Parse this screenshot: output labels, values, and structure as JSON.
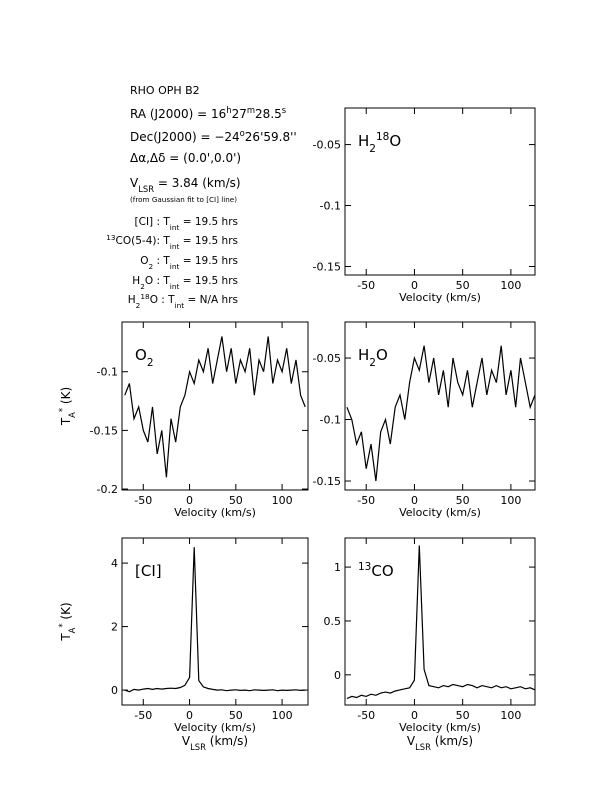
{
  "header": {
    "title": "RHO OPH B2",
    "lines": [
      [
        {
          "t": "RA (J2000) =  16"
        },
        {
          "sup": "h"
        },
        {
          "t": "27"
        },
        {
          "sup": "m"
        },
        {
          "t": "28.5"
        },
        {
          "sup": "s"
        }
      ],
      [
        {
          "t": "Dec(J2000) = −24"
        },
        {
          "sup": "o"
        },
        {
          "t": "26'59.8''"
        }
      ],
      [
        {
          "t": "Δα,Δδ = (0.0',0.0')"
        }
      ],
      [
        {
          "t": "V"
        },
        {
          "sub": "LSR"
        },
        {
          "t": " = 3.84 (km/s)"
        }
      ],
      [
        {
          "small": "(from Gaussian fit to [CI] line)"
        }
      ],
      [
        {
          "t": "[CI] : T"
        },
        {
          "sub": "int"
        },
        {
          "t": " = 19.5 hrs"
        }
      ],
      [
        {
          "sup": "13"
        },
        {
          "t": "CO(5-4): T"
        },
        {
          "sub": "int"
        },
        {
          "t": " = 19.5 hrs"
        }
      ],
      [
        {
          "t": "O"
        },
        {
          "sub": "2"
        },
        {
          "t": " : T"
        },
        {
          "sub": "int"
        },
        {
          "t": " = 19.5 hrs"
        }
      ],
      [
        {
          "t": "H"
        },
        {
          "sub": "2"
        },
        {
          "t": "O : T"
        },
        {
          "sub": "int"
        },
        {
          "t": " = 19.5 hrs"
        }
      ],
      [
        {
          "t": "H"
        },
        {
          "sub": "2"
        },
        {
          "sup": "18"
        },
        {
          "t": "O : T"
        },
        {
          "sub": "int"
        },
        {
          "t": " = N/A hrs"
        }
      ]
    ]
  },
  "chart_data": [
    {
      "type": "line",
      "label": [
        {
          "t": "H"
        },
        {
          "sub": "2"
        },
        {
          "sup": "18"
        },
        {
          "t": "O"
        }
      ],
      "xlim": [
        -72,
        125
      ],
      "ylim": [
        -0.157,
        -0.02
      ],
      "xticks": [
        -50,
        0,
        50,
        100
      ],
      "yticks": [
        -0.05,
        -0.1,
        -0.15
      ],
      "xlabel": "Velocity (km/s)"
    },
    {
      "type": "line",
      "label": [
        {
          "t": "O"
        },
        {
          "sub": "2"
        }
      ],
      "ylabel": [
        {
          "t": "T"
        },
        {
          "sub": "A"
        },
        {
          "sup": "*"
        },
        {
          "t": " (K)"
        }
      ],
      "x": [
        -70,
        -65,
        -60,
        -55,
        -50,
        -45,
        -40,
        -35,
        -30,
        -25,
        -20,
        -15,
        -10,
        -5,
        0,
        5,
        10,
        15,
        20,
        25,
        30,
        35,
        40,
        45,
        50,
        55,
        60,
        65,
        70,
        75,
        80,
        85,
        90,
        95,
        100,
        105,
        110,
        115,
        120,
        125
      ],
      "series": [
        {
          "color": "#000000",
          "values": [
            -0.12,
            -0.11,
            -0.14,
            -0.13,
            -0.15,
            -0.16,
            -0.13,
            -0.17,
            -0.15,
            -0.19,
            -0.14,
            -0.16,
            -0.13,
            -0.12,
            -0.1,
            -0.11,
            -0.09,
            -0.1,
            -0.08,
            -0.11,
            -0.09,
            -0.07,
            -0.1,
            -0.08,
            -0.11,
            -0.09,
            -0.1,
            -0.08,
            -0.12,
            -0.09,
            -0.1,
            -0.07,
            -0.11,
            -0.09,
            -0.1,
            -0.08,
            -0.11,
            -0.09,
            -0.12,
            -0.13
          ]
        }
      ],
      "xlim": [
        -73,
        128
      ],
      "ylim": [
        -0.2008,
        -0.0576
      ],
      "xticks": [
        -50,
        0,
        50,
        100
      ],
      "yticks": [
        -0.1,
        -0.15,
        -0.2
      ],
      "xlabel": "Velocity (km/s)"
    },
    {
      "type": "line",
      "label": [
        {
          "t": "H"
        },
        {
          "sub": "2"
        },
        {
          "t": "O"
        }
      ],
      "x": [
        -70,
        -65,
        -60,
        -55,
        -50,
        -45,
        -40,
        -35,
        -30,
        -25,
        -20,
        -15,
        -10,
        -5,
        0,
        5,
        10,
        15,
        20,
        25,
        30,
        35,
        40,
        45,
        50,
        55,
        60,
        65,
        70,
        75,
        80,
        85,
        90,
        95,
        100,
        105,
        110,
        115,
        120,
        125
      ],
      "series": [
        {
          "color": "#000000",
          "values": [
            -0.09,
            -0.1,
            -0.12,
            -0.11,
            -0.14,
            -0.12,
            -0.15,
            -0.11,
            -0.1,
            -0.12,
            -0.09,
            -0.08,
            -0.1,
            -0.07,
            -0.05,
            -0.06,
            -0.04,
            -0.07,
            -0.05,
            -0.08,
            -0.06,
            -0.09,
            -0.05,
            -0.07,
            -0.08,
            -0.06,
            -0.09,
            -0.07,
            -0.05,
            -0.08,
            -0.06,
            -0.07,
            -0.04,
            -0.08,
            -0.06,
            -0.09,
            -0.05,
            -0.07,
            -0.09,
            -0.08
          ]
        }
      ],
      "xlim": [
        -72,
        125
      ],
      "ylim": [
        -0.1573,
        -0.0207
      ],
      "xticks": [
        -50,
        0,
        50,
        100
      ],
      "yticks": [
        -0.05,
        -0.1,
        -0.15
      ],
      "xlabel": "Velocity (km/s)"
    },
    {
      "type": "line",
      "label": [
        {
          "t": "[CI]"
        }
      ],
      "ylabel": [
        {
          "t": "T"
        },
        {
          "sub": "A"
        },
        {
          "sup": "*"
        },
        {
          "t": " (K)"
        }
      ],
      "x": [
        -70,
        -65,
        -60,
        -55,
        -50,
        -45,
        -40,
        -35,
        -30,
        -25,
        -20,
        -15,
        -10,
        -5,
        0,
        5,
        10,
        15,
        20,
        25,
        30,
        35,
        40,
        45,
        50,
        55,
        60,
        65,
        70,
        75,
        80,
        85,
        90,
        95,
        100,
        105,
        110,
        115,
        120,
        125
      ],
      "series": [
        {
          "color": "#000000",
          "values": [
            0,
            -0.05,
            0.02,
            0,
            0.03,
            0.05,
            0.02,
            0.05,
            0.03,
            0.05,
            0.06,
            0.05,
            0.08,
            0.15,
            0.4,
            4.5,
            0.3,
            0.1,
            0.05,
            0.02,
            0,
            0.01,
            -0.02,
            0,
            0.01,
            -0.01,
            0,
            -0.02,
            0.01,
            0,
            -0.01,
            0,
            0.01,
            -0.02,
            0,
            -0.01,
            0,
            0.01,
            -0.01,
            0
          ]
        }
      ],
      "xlim": [
        -73,
        128
      ],
      "ylim": [
        -0.47,
        4.79
      ],
      "xticks": [
        -50,
        0,
        50,
        100
      ],
      "yticks": [
        0,
        2,
        4
      ],
      "xlabel": "Velocity (km/s)",
      "x2label": [
        {
          "t": "V"
        },
        {
          "sub": "LSR"
        },
        {
          "t": " (km/s)"
        }
      ]
    },
    {
      "type": "line",
      "label": [
        {
          "sup": "13"
        },
        {
          "t": "CO"
        }
      ],
      "x": [
        -70,
        -65,
        -60,
        -55,
        -50,
        -45,
        -40,
        -35,
        -30,
        -25,
        -20,
        -15,
        -10,
        -5,
        0,
        5,
        10,
        15,
        20,
        25,
        30,
        35,
        40,
        45,
        50,
        55,
        60,
        65,
        70,
        75,
        80,
        85,
        90,
        95,
        100,
        105,
        110,
        115,
        120,
        125
      ],
      "series": [
        {
          "color": "#000000",
          "values": [
            -0.22,
            -0.2,
            -0.21,
            -0.19,
            -0.2,
            -0.18,
            -0.19,
            -0.17,
            -0.16,
            -0.17,
            -0.15,
            -0.14,
            -0.13,
            -0.12,
            -0.05,
            1.2,
            0.05,
            -0.1,
            -0.11,
            -0.12,
            -0.1,
            -0.11,
            -0.09,
            -0.1,
            -0.11,
            -0.09,
            -0.1,
            -0.12,
            -0.1,
            -0.11,
            -0.12,
            -0.1,
            -0.12,
            -0.11,
            -0.13,
            -0.12,
            -0.11,
            -0.13,
            -0.12,
            -0.14
          ]
        }
      ],
      "xlim": [
        -72,
        125
      ],
      "ylim": [
        -0.28,
        1.27
      ],
      "xticks": [
        -50,
        0,
        50,
        100
      ],
      "yticks": [
        0,
        0.5,
        1
      ],
      "xlabel": "Velocity (km/s)",
      "x2label": [
        {
          "t": "V"
        },
        {
          "sub": "LSR"
        },
        {
          "t": " (km/s)"
        }
      ]
    }
  ]
}
